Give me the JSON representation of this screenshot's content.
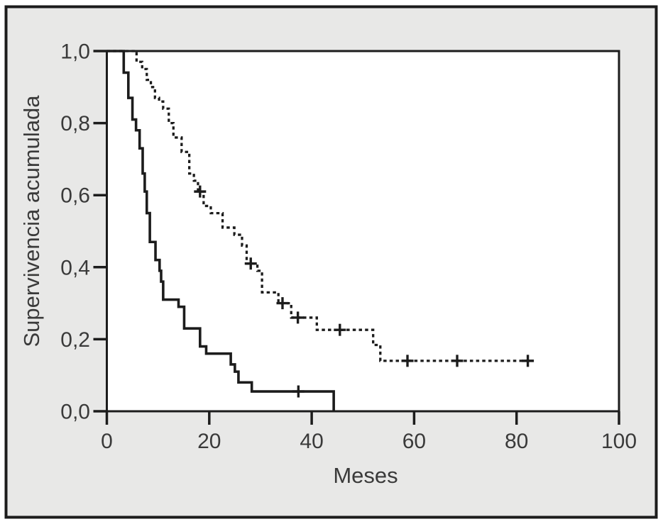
{
  "figure": {
    "panel_color": "#e8e8e7",
    "plot_background": "#ffffff",
    "line_color": "#1c1c1c",
    "frame_color": "#1c1c1c",
    "text_color": "#3a3a3a"
  },
  "chart_data": {
    "type": "line",
    "subtype": "kaplan-meier-step-curves",
    "title": "",
    "xlabel": "Meses",
    "ylabel": "Supervivencia acumulada",
    "xlim": [
      0,
      100
    ],
    "ylim": [
      0,
      1
    ],
    "x_ticks": [
      0,
      20,
      40,
      60,
      80,
      100
    ],
    "x_tick_labels": [
      "0",
      "20",
      "40",
      "60",
      "80",
      "100"
    ],
    "y_ticks": [
      0.0,
      0.2,
      0.4,
      0.6,
      0.8,
      1.0
    ],
    "y_tick_labels": [
      "0,0",
      "0,2",
      "0,4",
      "0,6",
      "0,8",
      "1,0"
    ],
    "grid": false,
    "legend": "none",
    "series": [
      {
        "name": "grupo-linea-continua",
        "style": "solid",
        "steps": [
          [
            0,
            1.0
          ],
          [
            3.3,
            0.94
          ],
          [
            4.2,
            0.87
          ],
          [
            5.0,
            0.81
          ],
          [
            5.7,
            0.78
          ],
          [
            6.4,
            0.73
          ],
          [
            7.0,
            0.66
          ],
          [
            7.4,
            0.61
          ],
          [
            7.8,
            0.55
          ],
          [
            8.4,
            0.47
          ],
          [
            9.5,
            0.42
          ],
          [
            10.3,
            0.39
          ],
          [
            10.6,
            0.36
          ],
          [
            11.0,
            0.31
          ],
          [
            14.0,
            0.29
          ],
          [
            15.1,
            0.23
          ],
          [
            18.2,
            0.18
          ],
          [
            19.4,
            0.16
          ],
          [
            24.2,
            0.13
          ],
          [
            25.0,
            0.11
          ],
          [
            25.7,
            0.08
          ],
          [
            28.3,
            0.055
          ],
          [
            44.3,
            0.0
          ]
        ],
        "censored": [
          [
            37.4,
            0.055
          ]
        ]
      },
      {
        "name": "grupo-linea-discontinua",
        "style": "dashed",
        "steps": [
          [
            0,
            1.0
          ],
          [
            5.8,
            0.97
          ],
          [
            6.9,
            0.95
          ],
          [
            7.8,
            0.92
          ],
          [
            8.6,
            0.9
          ],
          [
            9.4,
            0.87
          ],
          [
            10.2,
            0.86
          ],
          [
            11.0,
            0.84
          ],
          [
            12.1,
            0.8
          ],
          [
            13.0,
            0.76
          ],
          [
            14.6,
            0.72
          ],
          [
            16.1,
            0.66
          ],
          [
            17.0,
            0.64
          ],
          [
            17.8,
            0.61
          ],
          [
            18.9,
            0.57
          ],
          [
            20.3,
            0.55
          ],
          [
            22.6,
            0.51
          ],
          [
            24.9,
            0.49
          ],
          [
            26.4,
            0.46
          ],
          [
            27.3,
            0.41
          ],
          [
            29.4,
            0.39
          ],
          [
            30.3,
            0.33
          ],
          [
            33.5,
            0.3
          ],
          [
            36.0,
            0.26
          ],
          [
            41.0,
            0.226
          ],
          [
            52.0,
            0.184
          ],
          [
            53.4,
            0.14
          ],
          [
            82.2,
            0.14
          ]
        ],
        "censored": [
          [
            18.2,
            0.61
          ],
          [
            28.1,
            0.41
          ],
          [
            34.3,
            0.3
          ],
          [
            37.3,
            0.26
          ],
          [
            45.5,
            0.226
          ],
          [
            58.7,
            0.14
          ],
          [
            68.4,
            0.14
          ],
          [
            82.2,
            0.14
          ]
        ]
      }
    ]
  }
}
